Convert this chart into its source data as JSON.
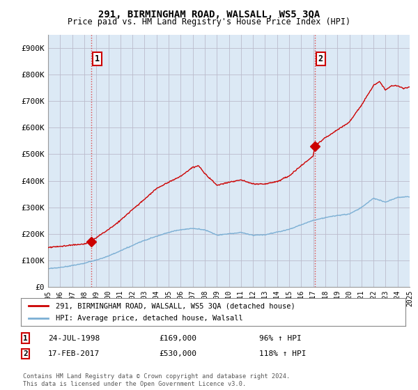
{
  "title": "291, BIRMINGHAM ROAD, WALSALL, WS5 3QA",
  "subtitle": "Price paid vs. HM Land Registry's House Price Index (HPI)",
  "ylim": [
    0,
    950000
  ],
  "yticks": [
    0,
    100000,
    200000,
    300000,
    400000,
    500000,
    600000,
    700000,
    800000,
    900000
  ],
  "ytick_labels": [
    "£0",
    "£100K",
    "£200K",
    "£300K",
    "£400K",
    "£500K",
    "£600K",
    "£700K",
    "£800K",
    "£900K"
  ],
  "x_start_year": 1995,
  "x_end_year": 2025,
  "line1_color": "#cc0000",
  "line2_color": "#7bafd4",
  "chart_bg_color": "#dce9f5",
  "purchase1_year": 1998.56,
  "purchase1_value": 169000,
  "purchase2_year": 2017.12,
  "purchase2_value": 530000,
  "legend_line1": "291, BIRMINGHAM ROAD, WALSALL, WS5 3QA (detached house)",
  "legend_line2": "HPI: Average price, detached house, Walsall",
  "annotation1_date": "24-JUL-1998",
  "annotation1_price": "£169,000",
  "annotation1_hpi": "96% ↑ HPI",
  "annotation2_date": "17-FEB-2017",
  "annotation2_price": "£530,000",
  "annotation2_hpi": "118% ↑ HPI",
  "footer": "Contains HM Land Registry data © Crown copyright and database right 2024.\nThis data is licensed under the Open Government Licence v3.0.",
  "background_color": "#ffffff",
  "grid_color": "#bbbbcc",
  "dashed_vline_color": "#dd4444",
  "hpi_anchors_x": [
    1995,
    1996,
    1997,
    1998,
    1999,
    2000,
    2001,
    2002,
    2003,
    2004,
    2005,
    2006,
    2007,
    2008,
    2009,
    2010,
    2011,
    2012,
    2013,
    2014,
    2015,
    2016,
    2017,
    2018,
    2019,
    2020,
    2021,
    2022,
    2023,
    2024,
    2025
  ],
  "hpi_anchors_y": [
    68000,
    72000,
    80000,
    88000,
    100000,
    115000,
    135000,
    155000,
    175000,
    190000,
    205000,
    215000,
    220000,
    215000,
    195000,
    200000,
    205000,
    195000,
    197000,
    207000,
    218000,
    235000,
    252000,
    262000,
    270000,
    275000,
    300000,
    335000,
    320000,
    338000,
    340000
  ],
  "red_anchors_x": [
    1995,
    1996,
    1997,
    1998,
    1998.56,
    1999,
    2000,
    2001,
    2002,
    2003,
    2004,
    2005,
    2006,
    2007,
    2007.5,
    2008,
    2009,
    2010,
    2011,
    2012,
    2013,
    2014,
    2015,
    2016,
    2017,
    2017.12,
    2018,
    2019,
    2020,
    2021,
    2022,
    2022.5,
    2023,
    2023.5,
    2024,
    2024.5,
    2025
  ],
  "red_anchors_y": [
    148000,
    152000,
    157000,
    162000,
    169000,
    185000,
    215000,
    250000,
    290000,
    330000,
    370000,
    395000,
    415000,
    450000,
    455000,
    425000,
    380000,
    390000,
    400000,
    385000,
    385000,
    395000,
    415000,
    455000,
    490000,
    530000,
    560000,
    590000,
    620000,
    685000,
    760000,
    775000,
    745000,
    760000,
    760000,
    750000,
    755000
  ]
}
